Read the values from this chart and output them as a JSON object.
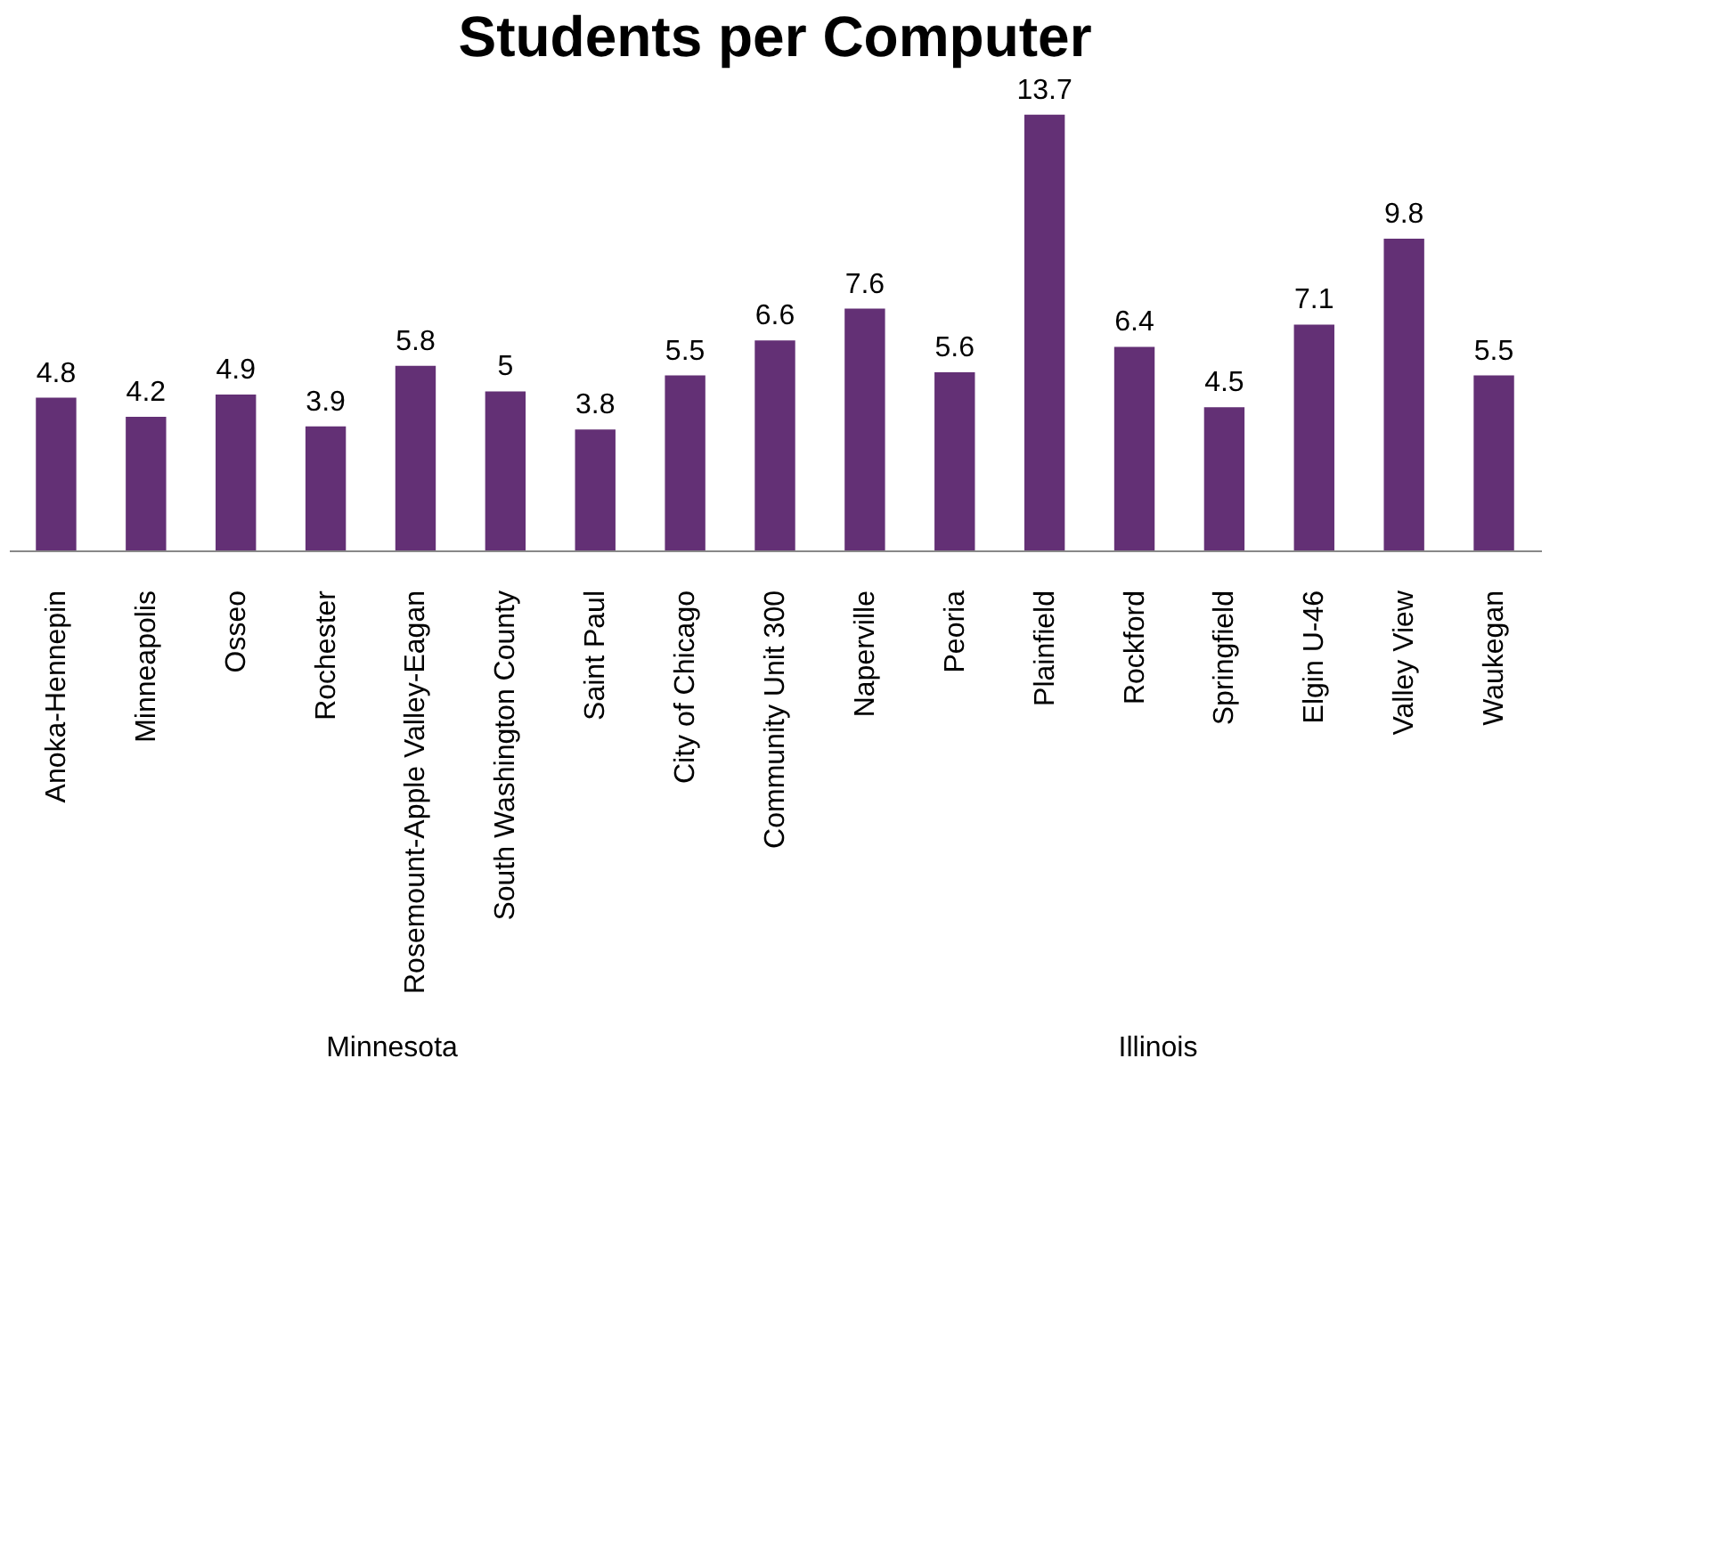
{
  "chart_data": {
    "type": "bar",
    "title": "Students per Computer",
    "categories": [
      "Anoka-Hennepin",
      "Minneapolis",
      "Osseo",
      "Rochester",
      "Rosemount-Apple Valley-Eagan",
      "South Washington County",
      "Saint Paul",
      "City of Chicago",
      "Community Unit 300",
      "Naperville",
      "Peoria",
      "Plainfield",
      "Rockford",
      "Springfield",
      "Elgin U-46",
      "Valley View",
      "Waukegan"
    ],
    "values": [
      4.8,
      4.2,
      4.9,
      3.9,
      5.8,
      5,
      3.8,
      5.5,
      6.6,
      7.6,
      5.6,
      13.7,
      6.4,
      4.5,
      7.1,
      9.8,
      5.5
    ],
    "color": "#633075",
    "data_labels": true,
    "tick_labels": "x",
    "annotations": [
      "Minnesota",
      "Illinois"
    ]
  }
}
